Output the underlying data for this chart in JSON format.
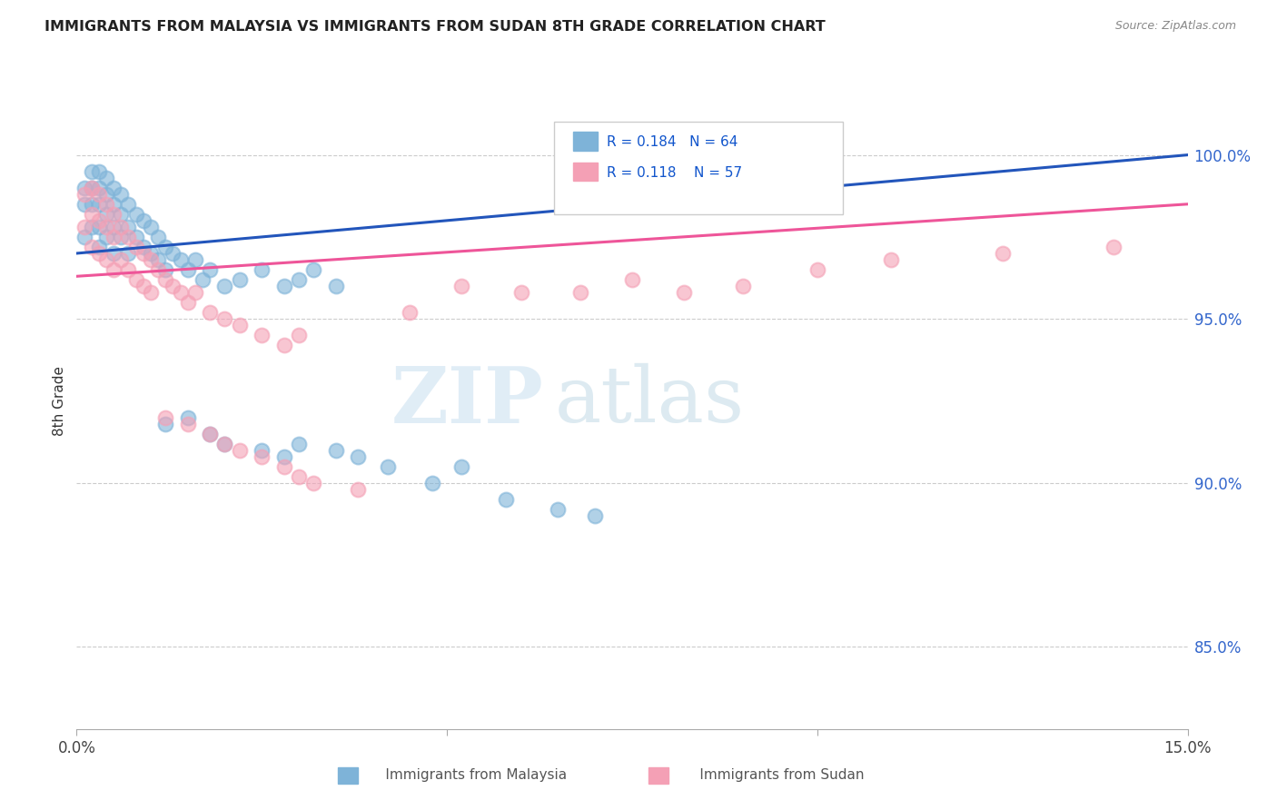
{
  "title": "IMMIGRANTS FROM MALAYSIA VS IMMIGRANTS FROM SUDAN 8TH GRADE CORRELATION CHART",
  "source": "Source: ZipAtlas.com",
  "ylabel": "8th Grade",
  "right_yticks": [
    "100.0%",
    "95.0%",
    "90.0%",
    "85.0%"
  ],
  "right_ytick_vals": [
    1.0,
    0.95,
    0.9,
    0.85
  ],
  "x_min": 0.0,
  "x_max": 0.15,
  "y_min": 0.825,
  "y_max": 1.025,
  "legend_r_malaysia": "R = 0.184",
  "legend_n_malaysia": "N = 64",
  "legend_r_sudan": "R = 0.118",
  "legend_n_sudan": "N = 57",
  "color_malaysia": "#7EB3D8",
  "color_sudan": "#F4A0B5",
  "color_trend_malaysia": "#2255BB",
  "color_trend_sudan": "#EE5599",
  "watermark_zip": "ZIP",
  "watermark_atlas": "atlas",
  "malaysia_x": [
    0.001,
    0.001,
    0.001,
    0.002,
    0.002,
    0.002,
    0.002,
    0.003,
    0.003,
    0.003,
    0.003,
    0.003,
    0.004,
    0.004,
    0.004,
    0.004,
    0.005,
    0.005,
    0.005,
    0.005,
    0.006,
    0.006,
    0.006,
    0.007,
    0.007,
    0.007,
    0.008,
    0.008,
    0.009,
    0.009,
    0.01,
    0.01,
    0.011,
    0.011,
    0.012,
    0.012,
    0.013,
    0.014,
    0.015,
    0.016,
    0.017,
    0.018,
    0.02,
    0.022,
    0.025,
    0.028,
    0.03,
    0.032,
    0.035,
    0.012,
    0.015,
    0.018,
    0.02,
    0.025,
    0.028,
    0.03,
    0.035,
    0.038,
    0.042,
    0.048,
    0.052,
    0.058,
    0.065,
    0.07
  ],
  "malaysia_y": [
    0.99,
    0.985,
    0.975,
    0.995,
    0.99,
    0.985,
    0.978,
    0.995,
    0.99,
    0.985,
    0.978,
    0.972,
    0.993,
    0.988,
    0.982,
    0.975,
    0.99,
    0.985,
    0.978,
    0.97,
    0.988,
    0.982,
    0.975,
    0.985,
    0.978,
    0.97,
    0.982,
    0.975,
    0.98,
    0.972,
    0.978,
    0.97,
    0.975,
    0.968,
    0.972,
    0.965,
    0.97,
    0.968,
    0.965,
    0.968,
    0.962,
    0.965,
    0.96,
    0.962,
    0.965,
    0.96,
    0.962,
    0.965,
    0.96,
    0.918,
    0.92,
    0.915,
    0.912,
    0.91,
    0.908,
    0.912,
    0.91,
    0.908,
    0.905,
    0.9,
    0.905,
    0.895,
    0.892,
    0.89
  ],
  "sudan_x": [
    0.001,
    0.001,
    0.002,
    0.002,
    0.002,
    0.003,
    0.003,
    0.003,
    0.004,
    0.004,
    0.004,
    0.005,
    0.005,
    0.005,
    0.006,
    0.006,
    0.007,
    0.007,
    0.008,
    0.008,
    0.009,
    0.009,
    0.01,
    0.01,
    0.011,
    0.012,
    0.013,
    0.014,
    0.015,
    0.016,
    0.018,
    0.02,
    0.022,
    0.025,
    0.028,
    0.03,
    0.012,
    0.015,
    0.018,
    0.02,
    0.022,
    0.025,
    0.028,
    0.03,
    0.032,
    0.038,
    0.045,
    0.052,
    0.06,
    0.068,
    0.075,
    0.082,
    0.09,
    0.1,
    0.11,
    0.125,
    0.14
  ],
  "sudan_y": [
    0.988,
    0.978,
    0.99,
    0.982,
    0.972,
    0.988,
    0.98,
    0.97,
    0.985,
    0.978,
    0.968,
    0.982,
    0.975,
    0.965,
    0.978,
    0.968,
    0.975,
    0.965,
    0.972,
    0.962,
    0.97,
    0.96,
    0.968,
    0.958,
    0.965,
    0.962,
    0.96,
    0.958,
    0.955,
    0.958,
    0.952,
    0.95,
    0.948,
    0.945,
    0.942,
    0.945,
    0.92,
    0.918,
    0.915,
    0.912,
    0.91,
    0.908,
    0.905,
    0.902,
    0.9,
    0.898,
    0.952,
    0.96,
    0.958,
    0.958,
    0.962,
    0.958,
    0.96,
    0.965,
    0.968,
    0.97,
    0.972
  ]
}
